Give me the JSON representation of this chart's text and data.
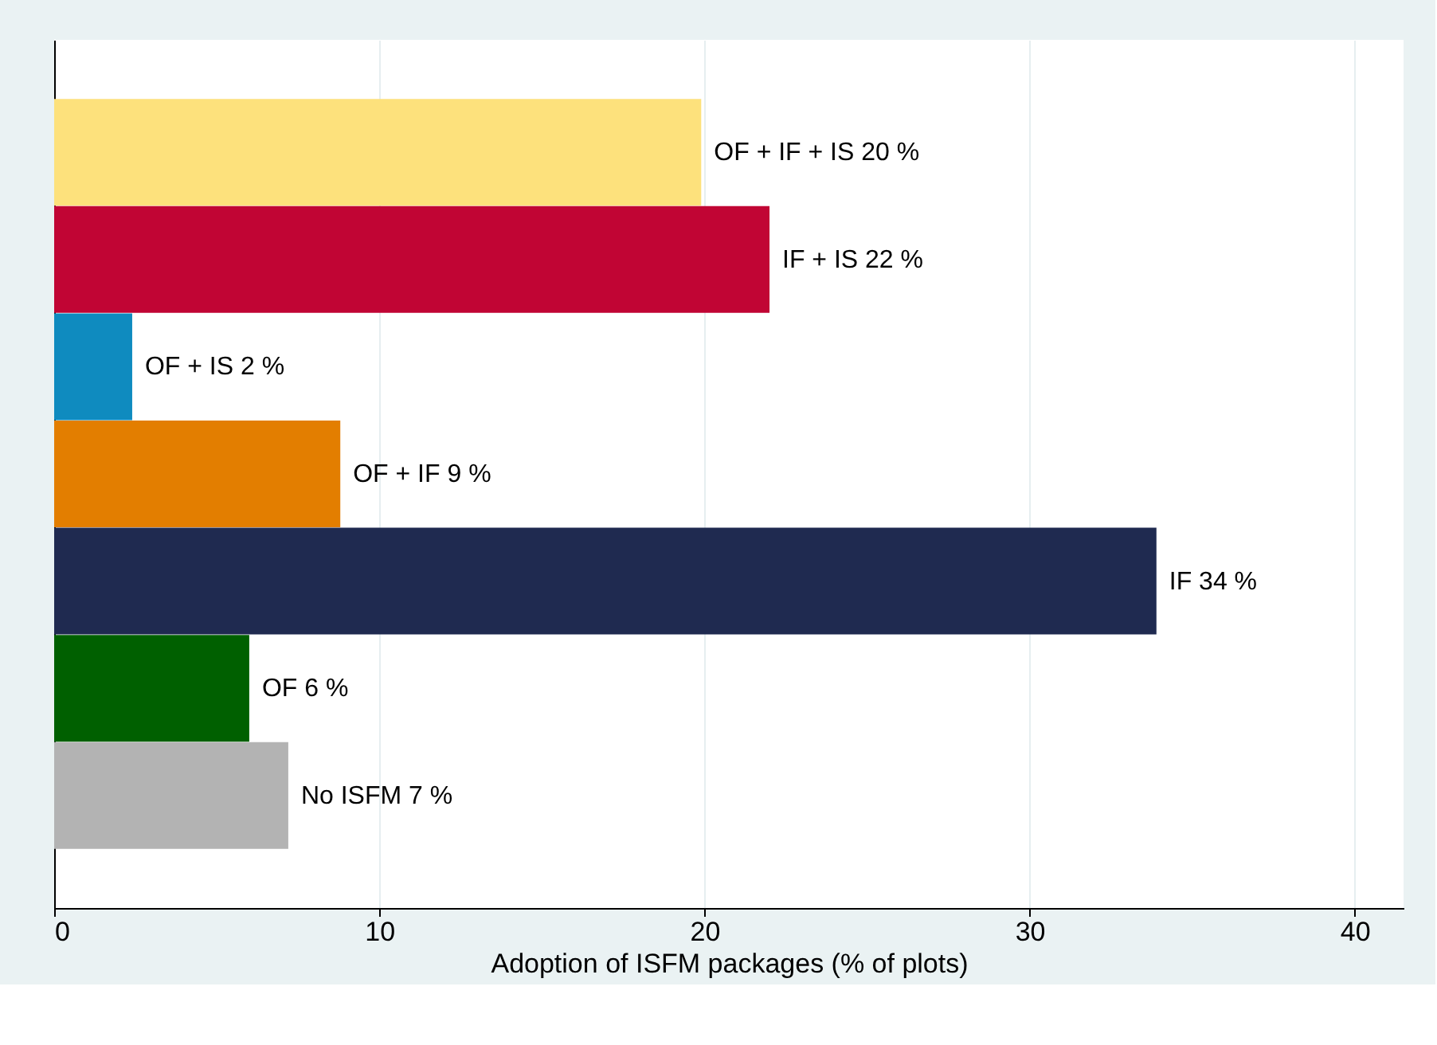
{
  "chart_data": {
    "type": "bar",
    "orientation": "horizontal",
    "xlabel": "Adoption of ISFM packages (% of plots)",
    "categories": [
      null,
      null,
      null,
      null,
      null,
      null,
      null
    ],
    "values": [
      19.9,
      22.0,
      2.4,
      8.8,
      33.9,
      6.0,
      7.2
    ],
    "value_labels": [
      "OF + IF + IS 20 %",
      "IF + IS 22 %",
      "OF + IS 2 %",
      "OF + IF 9 %",
      "IF 34 %",
      "OF 6 %",
      "No ISFM 7 %"
    ],
    "colors": [
      "#fde17c",
      "#c10534",
      "#0f8bbf",
      "#e37e00",
      "#1f2a50",
      "#006000",
      "#b3b3b3"
    ],
    "xlim": [
      0,
      41.5
    ],
    "xticks": [
      0,
      10,
      20,
      30,
      40
    ],
    "grid": "x"
  }
}
